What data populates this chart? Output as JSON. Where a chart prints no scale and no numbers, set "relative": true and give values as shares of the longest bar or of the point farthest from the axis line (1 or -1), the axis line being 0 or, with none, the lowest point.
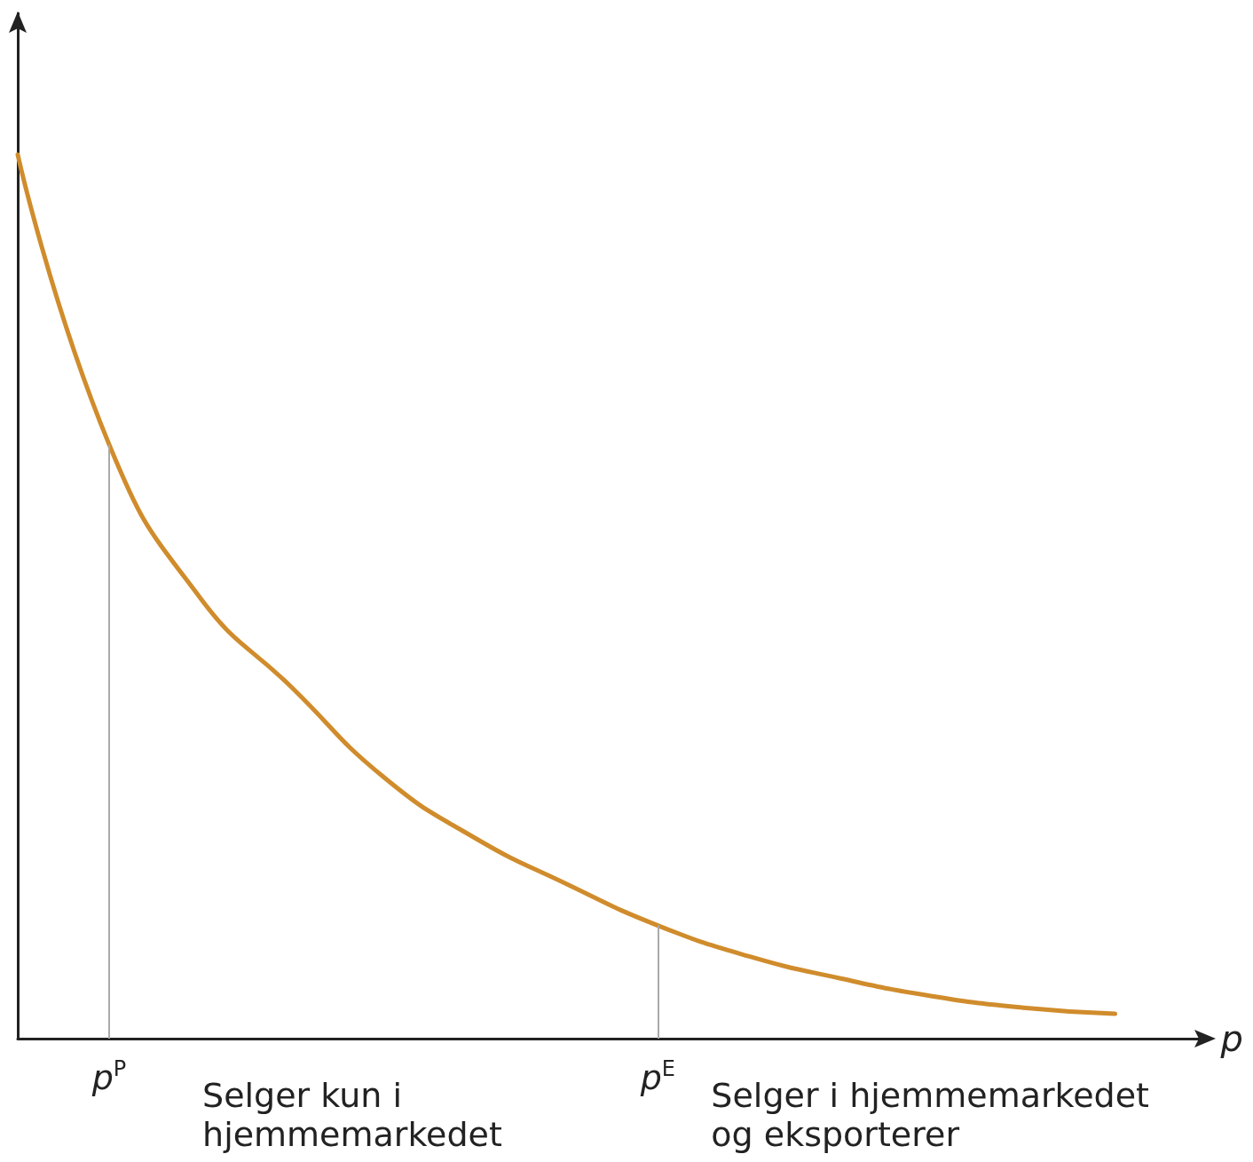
{
  "chart_data": {
    "type": "line",
    "relative": true,
    "xlabel": "p",
    "categories": [
      null,
      "p$^{P}$",
      null,
      null,
      null,
      null,
      null,
      "p$^{E}$",
      null,
      null,
      null,
      null,
      null,
      null
    ],
    "series": [
      {
        "color": "#d08c2c",
        "values": [
          1.0,
          0.672,
          0.498,
          0.397,
          0.296,
          0.227,
          0.175,
          0.128,
          0.093,
          0.068,
          0.048,
          0.035,
          0.028,
          null
        ]
      }
    ],
    "ref_lines": [
      {
        "axis": "x",
        "value": "p$^{P}$",
        "color": "#aaaaaa"
      },
      {
        "axis": "x",
        "value": "p$^{E}$",
        "color": "#aaaaaa"
      }
    ],
    "annotations": [
      "Selger kun i\nhjemmemarkedet",
      "Selger i hjemmemarkedet\nog eksporterer"
    ],
    "grid": false,
    "marker": "none",
    "line_style": "solid"
  }
}
